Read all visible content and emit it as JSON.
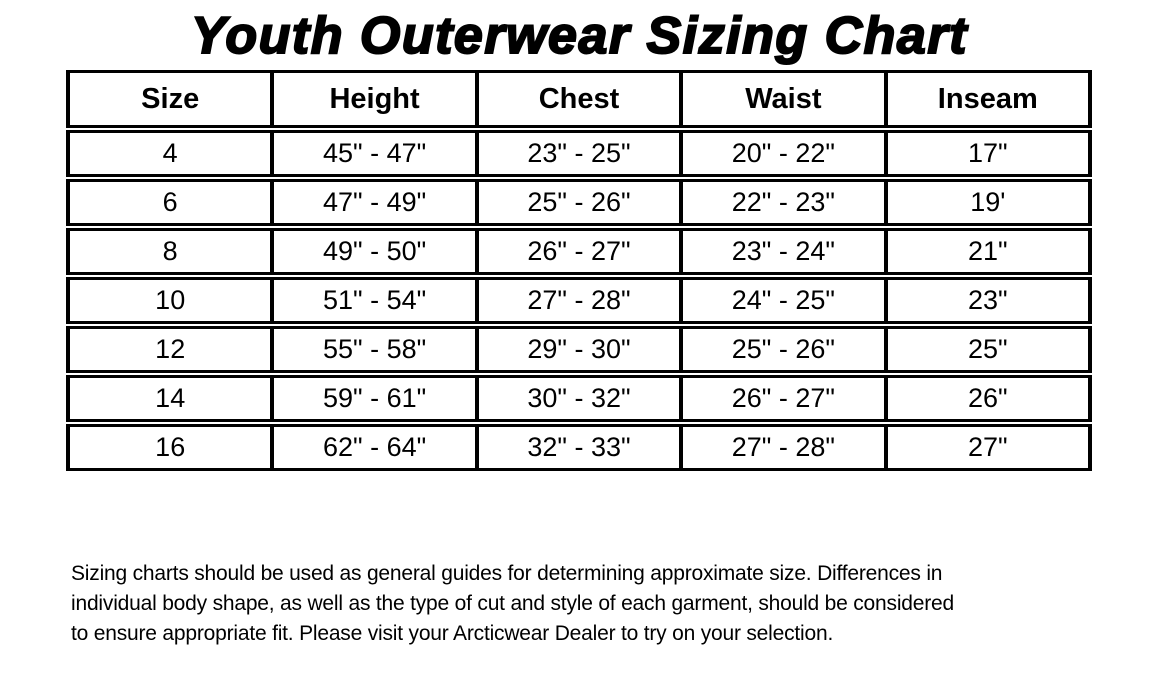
{
  "title": "Youth Outerwear Sizing Chart",
  "table": {
    "columns": [
      "Size",
      "Height",
      "Chest",
      "Waist",
      "Inseam"
    ],
    "rows": [
      [
        "4",
        "45\" - 47\"",
        "23\" - 25\"",
        "20\" - 22\"",
        "17\""
      ],
      [
        "6",
        "47\" - 49\"",
        "25\" - 26\"",
        "22\" - 23\"",
        "19'"
      ],
      [
        "8",
        "49\" - 50\"",
        "26\" - 27\"",
        "23\" - 24\"",
        "21\""
      ],
      [
        "10",
        "51\" - 54\"",
        "27\" - 28\"",
        "24\" - 25\"",
        "23\""
      ],
      [
        "12",
        "55\" - 58\"",
        "29\" - 30\"",
        "25\" - 26\"",
        "25\""
      ],
      [
        "14",
        "59\" - 61\"",
        "30\" - 32\"",
        "26\" - 27\"",
        "26\""
      ],
      [
        "16",
        "62\" - 64\"",
        "32\" - 33\"",
        "27\" - 28\"",
        "27\""
      ]
    ]
  },
  "footer": {
    "lines": [
      "Sizing charts should be used as general guides for determining approximate size. Differences in",
      "individual body shape, as well as the type of cut and style of each garment, should be considered",
      "to ensure appropriate fit. Please visit your Arcticwear Dealer to try on your selection."
    ]
  },
  "colors": {
    "text": "#000000",
    "background": "#ffffff",
    "border": "#000000"
  }
}
